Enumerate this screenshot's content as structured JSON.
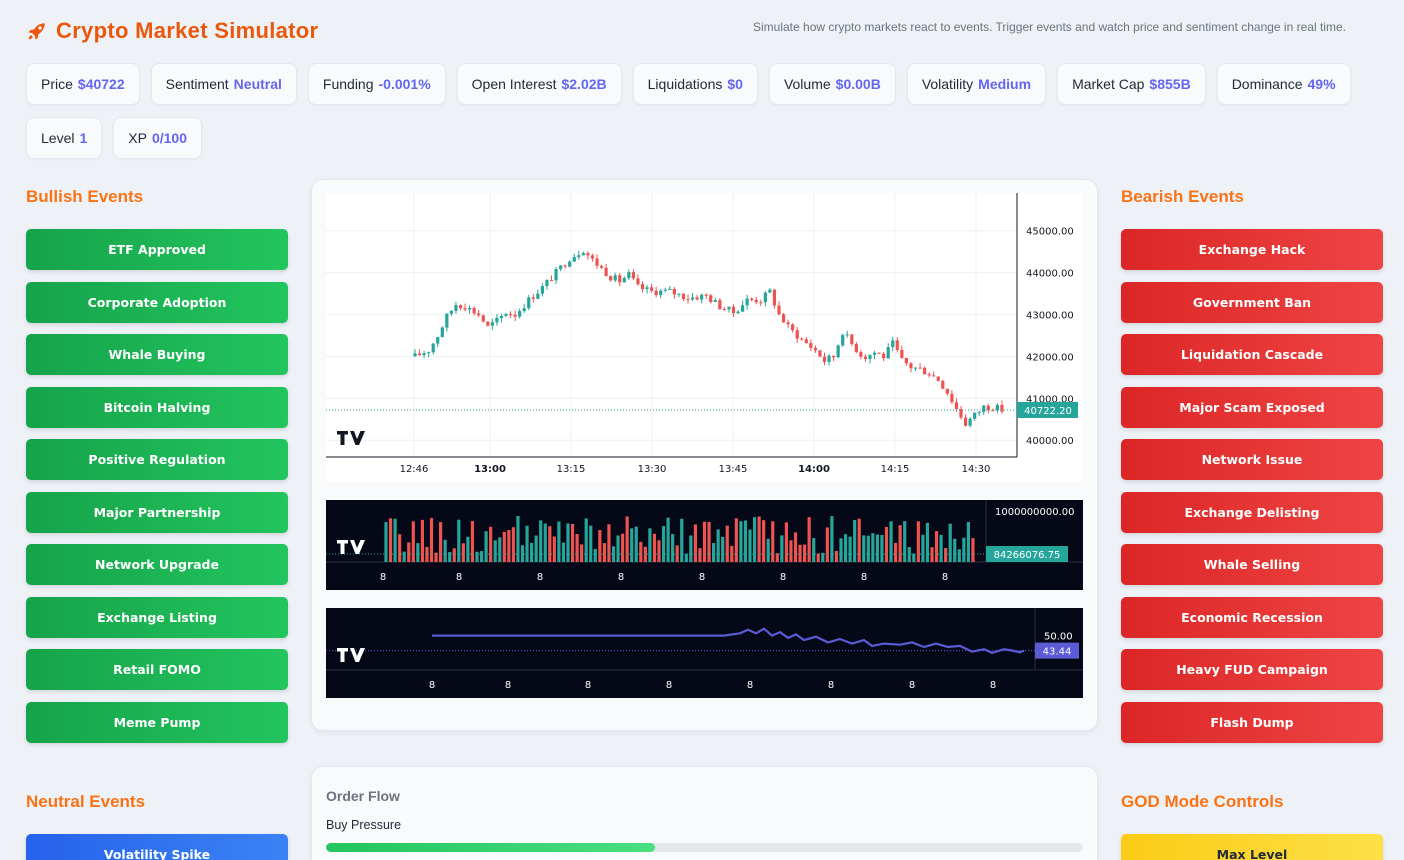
{
  "app": {
    "title": "Crypto Market Simulator",
    "subtitle": "Simulate how crypto markets react to events. Trigger events and watch price and sentiment change in real time."
  },
  "stats": [
    {
      "label": "Price",
      "value": "$40722"
    },
    {
      "label": "Sentiment",
      "value": "Neutral"
    },
    {
      "label": "Funding",
      "value": "-0.001%"
    },
    {
      "label": "Open Interest",
      "value": "$2.02B"
    },
    {
      "label": "Liquidations",
      "value": "$0"
    },
    {
      "label": "Volume",
      "value": "$0.00B"
    },
    {
      "label": "Volatility",
      "value": "Medium"
    },
    {
      "label": "Market Cap",
      "value": "$855B"
    },
    {
      "label": "Dominance",
      "value": "49%"
    },
    {
      "label": "Level",
      "value": "1"
    },
    {
      "label": "XP",
      "value": "0/100"
    }
  ],
  "bullish": {
    "title": "Bullish Events",
    "buttons": [
      "ETF Approved",
      "Corporate Adoption",
      "Whale Buying",
      "Bitcoin Halving",
      "Positive Regulation",
      "Major Partnership",
      "Network Upgrade",
      "Exchange Listing",
      "Retail FOMO",
      "Meme Pump"
    ]
  },
  "bearish": {
    "title": "Bearish Events",
    "buttons": [
      "Exchange Hack",
      "Government Ban",
      "Liquidation Cascade",
      "Major Scam Exposed",
      "Network Issue",
      "Exchange Delisting",
      "Whale Selling",
      "Economic Recession",
      "Heavy FUD Campaign",
      "Flash Dump"
    ]
  },
  "neutral": {
    "title": "Neutral Events",
    "buttons": [
      "Volatility Spike"
    ]
  },
  "god": {
    "title": "GOD Mode Controls",
    "buttons": [
      "Max Level"
    ]
  },
  "order_flow": {
    "title": "Order Flow",
    "buy_label": "Buy Pressure",
    "buy_fraction": 0.435
  },
  "colors": {
    "up": "#26a69a",
    "down": "#ef5350",
    "sentiment_line": "#5b5bd6",
    "accent": "#f97316"
  },
  "chart_data": [
    {
      "type": "candlestick",
      "y_ticks": [
        "45000.00",
        "44000.00",
        "43000.00",
        "42000.00",
        "41000.00",
        "40000.00"
      ],
      "x_ticks": [
        "12:46",
        "13:00",
        "13:15",
        "13:30",
        "13:45",
        "14:00",
        "14:15",
        "14:30"
      ],
      "ylim": [
        39600,
        45900
      ],
      "last_value": "40722.20",
      "close_path": [
        [
          0,
          42000
        ],
        [
          3,
          42150
        ],
        [
          5,
          42500
        ],
        [
          7,
          42950
        ],
        [
          9,
          43250
        ],
        [
          11,
          43200
        ],
        [
          14,
          43000
        ],
        [
          16,
          42700
        ],
        [
          18,
          42850
        ],
        [
          20,
          43050
        ],
        [
          22,
          43000
        ],
        [
          25,
          43350
        ],
        [
          28,
          43650
        ],
        [
          31,
          44000
        ],
        [
          34,
          44350
        ],
        [
          37,
          44550
        ],
        [
          39,
          44300
        ],
        [
          41,
          44100
        ],
        [
          43,
          43900
        ],
        [
          45,
          43800
        ],
        [
          47,
          43950
        ],
        [
          49,
          43650
        ],
        [
          52,
          43550
        ],
        [
          56,
          43550
        ],
        [
          60,
          43400
        ],
        [
          64,
          43450
        ],
        [
          67,
          43200
        ],
        [
          70,
          43050
        ],
        [
          73,
          43350
        ],
        [
          76,
          43350
        ],
        [
          78,
          43550
        ],
        [
          80,
          43000
        ],
        [
          82,
          42700
        ],
        [
          85,
          42400
        ],
        [
          88,
          42150
        ],
        [
          90,
          41900
        ],
        [
          92,
          42000
        ],
        [
          94,
          42600
        ],
        [
          96,
          42300
        ],
        [
          98,
          42050
        ],
        [
          99,
          42000
        ],
        [
          101,
          42100
        ],
        [
          103,
          42000
        ],
        [
          105,
          42300
        ],
        [
          107,
          41900
        ],
        [
          109,
          41750
        ],
        [
          111,
          41700
        ],
        [
          113,
          41600
        ],
        [
          115,
          41450
        ],
        [
          117,
          41150
        ],
        [
          119,
          40750
        ],
        [
          121,
          40400
        ],
        [
          123,
          40600
        ],
        [
          125,
          40800
        ],
        [
          127,
          40800
        ],
        [
          129,
          40722
        ]
      ]
    },
    {
      "type": "bar",
      "y_ticks": [
        "1000000000.00"
      ],
      "x_ticks": [
        "8",
        "8",
        "8",
        "8",
        "8",
        "8",
        "8",
        "8"
      ],
      "last_value": "84266076.75"
    },
    {
      "type": "line",
      "y_ticks": [
        "50.00"
      ],
      "x_ticks": [
        "8",
        "8",
        "8",
        "8",
        "8",
        "8",
        "8",
        "8"
      ],
      "ylim": [
        35,
        62
      ],
      "last_value": "43.44",
      "values": [
        [
          0,
          50
        ],
        [
          73,
          50
        ],
        [
          77,
          51
        ],
        [
          79,
          52.5
        ],
        [
          81,
          51
        ],
        [
          83,
          53
        ],
        [
          85,
          50
        ],
        [
          87,
          51.5
        ],
        [
          89,
          49
        ],
        [
          91,
          50.5
        ],
        [
          93,
          48
        ],
        [
          96,
          49.5
        ],
        [
          99,
          47
        ],
        [
          102,
          48.5
        ],
        [
          105,
          46.5
        ],
        [
          108,
          48
        ],
        [
          110,
          45.5
        ],
        [
          113,
          46.5
        ],
        [
          117,
          46
        ],
        [
          120,
          47
        ],
        [
          123,
          45
        ],
        [
          126,
          46.5
        ],
        [
          129,
          45
        ],
        [
          132,
          45.5
        ],
        [
          135,
          43
        ],
        [
          138,
          44
        ],
        [
          140,
          42.5
        ],
        [
          143,
          44
        ],
        [
          145,
          43.5
        ],
        [
          147,
          42.7
        ],
        [
          148,
          43.44
        ]
      ]
    }
  ]
}
